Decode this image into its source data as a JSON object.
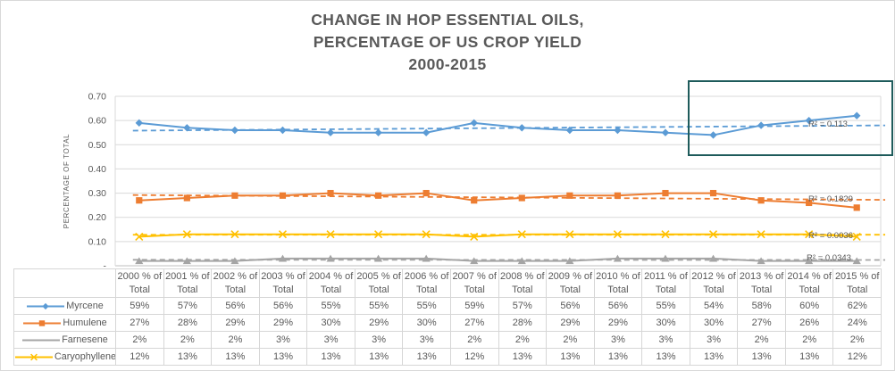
{
  "title": {
    "lines": [
      "CHANGE IN HOP ESSENTIAL OILS,",
      "PERCENTAGE OF US CROP YIELD",
      "2000-2015"
    ],
    "color": "#595959"
  },
  "chart_data": {
    "type": "line",
    "title": "CHANGE IN HOP ESSENTIAL OILS, PERCENTAGE OF US CROP YIELD 2000-2015",
    "ylabel": "PERCENTAGE OF TOTAL",
    "xlabel": "",
    "ylim": [
      0,
      0.7
    ],
    "grid": true,
    "legend_position": "data-table-left",
    "ytick_values": [
      0.7,
      0.6,
      0.5,
      0.4,
      0.3,
      0.2,
      0.1,
      0
    ],
    "ytick_labels": [
      "0.70",
      "0.60",
      "0.50",
      "0.40",
      "0.30",
      "0.20",
      "0.10",
      "-"
    ],
    "years": [
      "2000",
      "2001",
      "2002",
      "2003",
      "2004",
      "2005",
      "2006",
      "2007",
      "2008",
      "2009",
      "2010",
      "2011",
      "2012",
      "2013",
      "2014",
      "2015"
    ],
    "category_suffix_line1": "% of",
    "category_line2": "Total",
    "series": [
      {
        "name": "Myrcene",
        "color": "#5B9BD5",
        "marker": "diamond",
        "values_percent": [
          59,
          57,
          56,
          56,
          55,
          55,
          55,
          59,
          57,
          56,
          56,
          55,
          54,
          58,
          60,
          62
        ],
        "trend_r2_label": "R² = 0.113"
      },
      {
        "name": "Humulene",
        "color": "#ED7D31",
        "marker": "square",
        "values_percent": [
          27,
          28,
          29,
          29,
          30,
          29,
          30,
          27,
          28,
          29,
          29,
          30,
          30,
          27,
          26,
          24
        ],
        "trend_r2_label": "R² = 0.1829"
      },
      {
        "name": "Farnesene",
        "color": "#A5A5A5",
        "marker": "triangle",
        "values_percent": [
          2,
          2,
          2,
          3,
          3,
          3,
          3,
          2,
          2,
          2,
          3,
          3,
          3,
          2,
          2,
          2
        ],
        "trend_r2_label": "R² = 0.0343"
      },
      {
        "name": "Caryophyllene",
        "color": "#FFC000",
        "marker": "x",
        "values_percent": [
          12,
          13,
          13,
          13,
          13,
          13,
          13,
          12,
          13,
          13,
          13,
          13,
          13,
          13,
          13,
          12
        ],
        "trend_r2_label": "R² = 0.0036"
      }
    ],
    "trendlines": "linear-dashed",
    "highlight_box": {
      "color": "#1E5B5B"
    },
    "text_color": "#595959",
    "gridline_color": "#D9D9D9"
  }
}
